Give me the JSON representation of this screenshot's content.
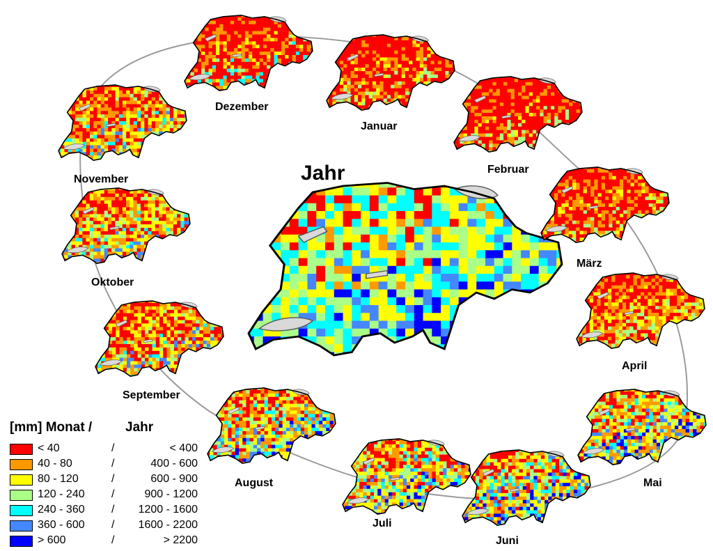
{
  "center": {
    "label": "Jahr",
    "mix": [
      0.04,
      0.06,
      0.3,
      0.2,
      0.22,
      0.12,
      0.06
    ]
  },
  "months": [
    {
      "name": "Dezember",
      "mix": [
        0.62,
        0.24,
        0.1,
        0.03,
        0.01,
        0.0,
        0.0
      ]
    },
    {
      "name": "Januar",
      "mix": [
        0.64,
        0.23,
        0.1,
        0.03,
        0.0,
        0.0,
        0.0
      ]
    },
    {
      "name": "Februar",
      "mix": [
        0.7,
        0.2,
        0.08,
        0.02,
        0.0,
        0.0,
        0.0
      ]
    },
    {
      "name": "März",
      "mix": [
        0.58,
        0.24,
        0.14,
        0.04,
        0.0,
        0.0,
        0.0
      ]
    },
    {
      "name": "April",
      "mix": [
        0.42,
        0.3,
        0.22,
        0.06,
        0.0,
        0.0,
        0.0
      ]
    },
    {
      "name": "Mai",
      "mix": [
        0.18,
        0.22,
        0.26,
        0.14,
        0.1,
        0.08,
        0.02
      ]
    },
    {
      "name": "Juni",
      "mix": [
        0.16,
        0.2,
        0.24,
        0.14,
        0.12,
        0.11,
        0.03
      ]
    },
    {
      "name": "Juli",
      "mix": [
        0.2,
        0.22,
        0.24,
        0.14,
        0.1,
        0.08,
        0.02
      ]
    },
    {
      "name": "August",
      "mix": [
        0.22,
        0.22,
        0.24,
        0.14,
        0.1,
        0.07,
        0.01
      ]
    },
    {
      "name": "September",
      "mix": [
        0.36,
        0.26,
        0.22,
        0.1,
        0.05,
        0.01,
        0.0
      ]
    },
    {
      "name": "Oktober",
      "mix": [
        0.3,
        0.26,
        0.24,
        0.12,
        0.07,
        0.01,
        0.0
      ]
    },
    {
      "name": "November",
      "mix": [
        0.34,
        0.26,
        0.22,
        0.1,
        0.07,
        0.01,
        0.0
      ]
    }
  ],
  "legend": {
    "title_left": "[mm] Monat /",
    "title_right": "Jahr",
    "separator": "/",
    "classes": [
      {
        "monat": "< 40",
        "jahr": "< 400",
        "color": "#ff0000"
      },
      {
        "monat": "40 - 80",
        "jahr": "400 - 600",
        "color": "#ff9900"
      },
      {
        "monat": "80 - 120",
        "jahr": "600 - 900",
        "color": "#ffff00"
      },
      {
        "monat": "120 - 240",
        "jahr": "900 - 1200",
        "color": "#aaff88"
      },
      {
        "monat": "240 - 360",
        "jahr": "1200 - 1600",
        "color": "#00ffff"
      },
      {
        "monat": "360 - 600",
        "jahr": "1600 - 2200",
        "color": "#4488ff"
      },
      {
        "monat": "> 600",
        "jahr": "> 2200",
        "color": "#0000ff"
      }
    ]
  },
  "colors": {
    "lake": "#d9d9d9",
    "outline": "#000000",
    "orbit": "#9a9a9a"
  }
}
